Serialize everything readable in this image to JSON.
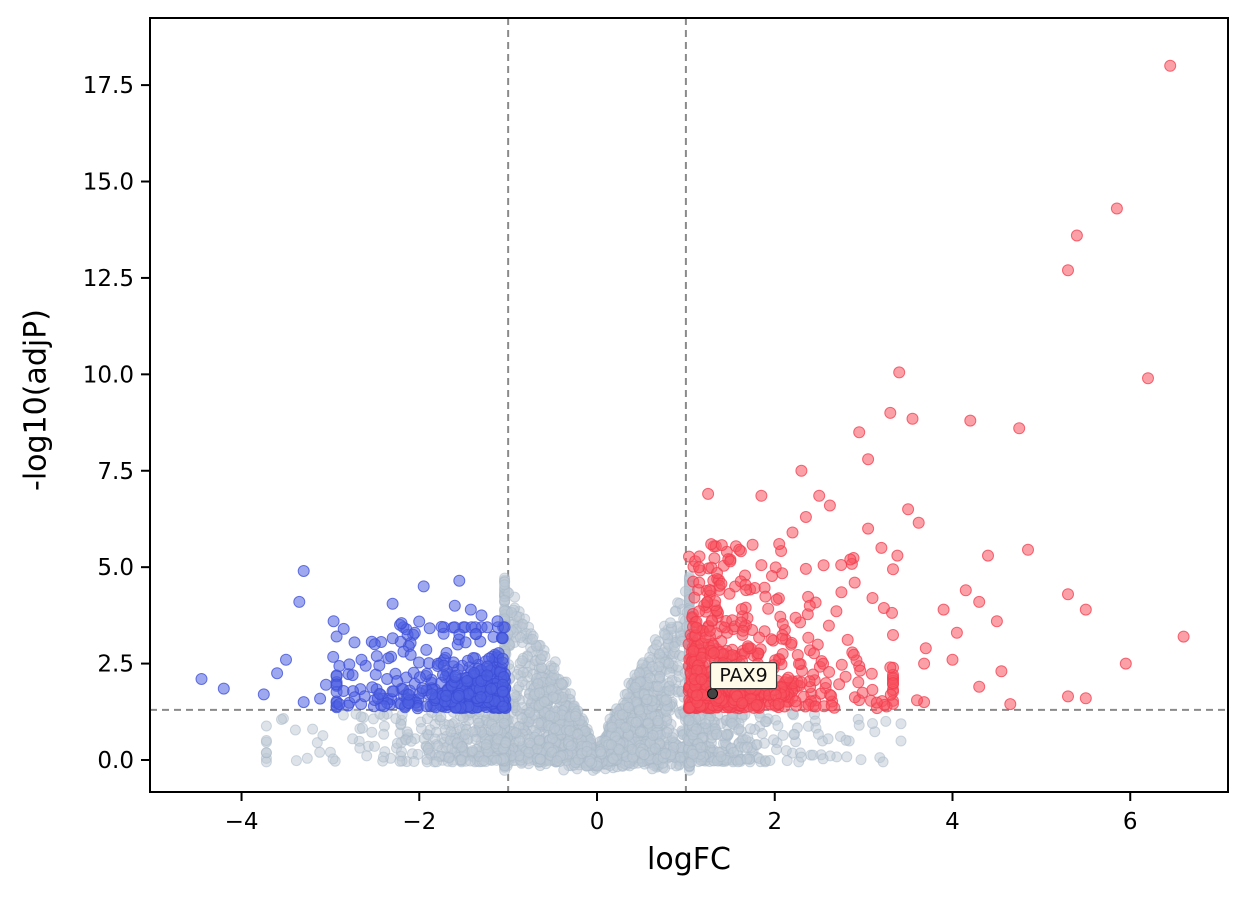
{
  "chart_data": {
    "type": "scatter",
    "variant": "volcano-plot",
    "title": "",
    "xlabel": "logFC",
    "ylabel": "-log10(adjP)",
    "xlim": [
      -5.03,
      7.1
    ],
    "ylim": [
      -0.83,
      19.24
    ],
    "grid": false,
    "legend": null,
    "xticks": {
      "values": [
        -4,
        -2,
        0,
        2,
        4,
        6
      ],
      "labels": [
        "−4",
        "−2",
        "0",
        "2",
        "4",
        "6"
      ]
    },
    "yticks": {
      "values": [
        0,
        2.5,
        5,
        7.5,
        10,
        12.5,
        15,
        17.5
      ],
      "labels": [
        "0.0",
        "2.5",
        "5.0",
        "7.5",
        "10.0",
        "12.5",
        "15.0",
        "17.5"
      ]
    },
    "threshold_lines": {
      "vertical_x": [
        -1,
        1
      ],
      "horizontal_y": 1.301,
      "color": "#8a8a8a",
      "style": "dashed"
    },
    "annotation": {
      "label": "PAX9",
      "point": [
        1.3,
        1.72
      ],
      "box_color": "#fffbe8",
      "border_color": "#3a3a3a"
    },
    "colors": {
      "not_significant": "#bcc8d4",
      "down": "#4f61e2",
      "up": "#f8525f",
      "axes": "#000000"
    },
    "series": [
      {
        "name": "not_significant_core",
        "kind": "volcano",
        "n": 2300,
        "sigma": 0.75,
        "xclip": 1.04,
        "ymax": 4.6,
        "xpow": 0.85,
        "ypow": 1.6,
        "noise": 0.12,
        "floor": -0.28,
        "fill": "#bcc8d4",
        "fill_opacity": 0.5,
        "stroke": "#a9b8c6",
        "stroke_opacity": 0.55,
        "radius": 5
      },
      {
        "name": "not_significant_right_wing",
        "kind": "cloud",
        "n": 260,
        "x": {
          "type": "exp",
          "offset": 1.02,
          "sign": 1,
          "mean": 0.55,
          "span": 2.4
        },
        "y": {
          "type": "uniform",
          "min": -0.05,
          "max": 1.25,
          "pow": 1.5
        },
        "fill": "#bcc8d4",
        "fill_opacity": 0.5,
        "stroke": "#a9b8c6",
        "stroke_opacity": 0.55,
        "radius": 5
      },
      {
        "name": "not_significant_left_wing",
        "kind": "cloud",
        "n": 300,
        "x": {
          "type": "exp",
          "offset": -1.02,
          "sign": -1,
          "mean": 0.62,
          "span": 2.7
        },
        "y": {
          "type": "uniform",
          "min": -0.05,
          "max": 1.25,
          "pow": 1.5
        },
        "fill": "#bcc8d4",
        "fill_opacity": 0.5,
        "stroke": "#a9b8c6",
        "stroke_opacity": 0.55,
        "radius": 5
      },
      {
        "name": "not_significant_extras",
        "kind": "points",
        "points": [
          [
            -3.55,
            1.05
          ],
          [
            -3.2,
            0.8
          ],
          [
            -2.75,
            0.55
          ],
          [
            -2.4,
            1.15
          ],
          [
            2.95,
            0.9
          ],
          [
            3.25,
            1.0
          ],
          [
            2.6,
            0.55
          ],
          [
            2.2,
            1.2
          ],
          [
            -1.9,
            0.3
          ],
          [
            1.8,
            0.4
          ]
        ],
        "fill": "#bcc8d4",
        "fill_opacity": 0.5,
        "stroke": "#a9b8c6",
        "stroke_opacity": 0.55,
        "radius": 5
      },
      {
        "name": "down_cluster",
        "kind": "cloud",
        "n": 400,
        "x": {
          "type": "exp",
          "offset": -1.03,
          "sign": -1,
          "mean": 0.5,
          "span": 1.9
        },
        "y": {
          "type": "exp",
          "offset": 1.34,
          "sign": 1,
          "mean": 0.55,
          "span": 2.1
        },
        "fill": "#4f61e2",
        "fill_opacity": 0.55,
        "stroke": "#3c4ed6",
        "stroke_opacity": 0.75,
        "radius": 5.5
      },
      {
        "name": "down_spread",
        "kind": "cloud",
        "n": 70,
        "x": {
          "type": "normal",
          "mu": -1.9,
          "sigma": 0.55,
          "clip": [
            -3.3,
            -1.06
          ]
        },
        "y": {
          "type": "uniform",
          "min": 1.35,
          "max": 3.6,
          "pow": 1
        },
        "fill": "#4f61e2",
        "fill_opacity": 0.55,
        "stroke": "#3c4ed6",
        "stroke_opacity": 0.75,
        "radius": 5.5
      },
      {
        "name": "down_outliers",
        "kind": "points",
        "points": [
          [
            -3.3,
            4.9
          ],
          [
            -1.55,
            4.65
          ],
          [
            -1.95,
            4.5
          ],
          [
            -3.35,
            4.1
          ],
          [
            -2.3,
            4.05
          ],
          [
            -1.6,
            4.0
          ],
          [
            -1.42,
            3.9
          ],
          [
            -2.85,
            3.4
          ],
          [
            -2.2,
            3.55
          ],
          [
            -1.12,
            3.6
          ],
          [
            -1.75,
            3.45
          ],
          [
            -2.05,
            3.3
          ],
          [
            -3.5,
            2.6
          ],
          [
            -3.6,
            2.25
          ],
          [
            -4.45,
            2.1
          ],
          [
            -4.2,
            1.85
          ],
          [
            -3.75,
            1.7
          ],
          [
            -3.3,
            1.5
          ],
          [
            -2.9,
            1.45
          ],
          [
            -2.65,
            2.6
          ],
          [
            -2.5,
            3.0
          ],
          [
            -2.75,
            2.2
          ],
          [
            -3.05,
            1.95
          ],
          [
            -2.45,
            2.45
          ],
          [
            -1.3,
            3.75
          ]
        ],
        "fill": "#4f61e2",
        "fill_opacity": 0.55,
        "stroke": "#3c4ed6",
        "stroke_opacity": 0.75,
        "radius": 5.5
      },
      {
        "name": "up_cluster",
        "kind": "cloud",
        "n": 620,
        "x": {
          "type": "exp",
          "offset": 1.03,
          "sign": 1,
          "mean": 0.55,
          "span": 2.3
        },
        "y": {
          "type": "exp",
          "offset": 1.34,
          "sign": 1,
          "mean": 0.8,
          "span": 4.2
        },
        "fill": "#f8525f",
        "fill_opacity": 0.55,
        "stroke": "#f23c4e",
        "stroke_opacity": 0.75,
        "radius": 5.5
      },
      {
        "name": "up_spread",
        "kind": "cloud",
        "n": 110,
        "x": {
          "type": "exp",
          "offset": 1.08,
          "sign": 1,
          "mean": 0.85,
          "span": 2.6
        },
        "y": {
          "type": "uniform",
          "min": 1.4,
          "max": 5.6,
          "pow": 1
        },
        "fill": "#f8525f",
        "fill_opacity": 0.55,
        "stroke": "#f23c4e",
        "stroke_opacity": 0.75,
        "radius": 5.5
      },
      {
        "name": "up_outliers",
        "kind": "points",
        "points": [
          [
            6.45,
            18.0
          ],
          [
            5.85,
            14.3
          ],
          [
            5.4,
            13.6
          ],
          [
            5.3,
            12.7
          ],
          [
            6.2,
            9.9
          ],
          [
            3.4,
            10.05
          ],
          [
            3.3,
            9.0
          ],
          [
            3.55,
            8.85
          ],
          [
            4.2,
            8.8
          ],
          [
            4.75,
            8.6
          ],
          [
            2.95,
            8.5
          ],
          [
            3.05,
            7.8
          ],
          [
            2.3,
            7.5
          ],
          [
            1.25,
            6.9
          ],
          [
            1.85,
            6.85
          ],
          [
            2.5,
            6.85
          ],
          [
            2.62,
            6.6
          ],
          [
            3.5,
            6.5
          ],
          [
            3.62,
            6.15
          ],
          [
            2.35,
            6.3
          ],
          [
            3.05,
            6.0
          ],
          [
            2.2,
            5.9
          ],
          [
            2.05,
            5.6
          ],
          [
            3.2,
            5.5
          ],
          [
            3.38,
            5.3
          ],
          [
            2.85,
            5.2
          ],
          [
            4.85,
            5.45
          ],
          [
            4.4,
            5.3
          ],
          [
            1.6,
            5.45
          ],
          [
            1.5,
            5.15
          ],
          [
            1.35,
            4.85
          ],
          [
            1.15,
            4.6
          ],
          [
            2.55,
            5.05
          ],
          [
            2.9,
            4.6
          ],
          [
            2.75,
            4.35
          ],
          [
            3.1,
            4.2
          ],
          [
            4.15,
            4.4
          ],
          [
            4.3,
            4.1
          ],
          [
            3.9,
            3.9
          ],
          [
            4.5,
            3.6
          ],
          [
            5.3,
            4.3
          ],
          [
            5.5,
            3.9
          ],
          [
            6.6,
            3.2
          ],
          [
            5.95,
            2.5
          ],
          [
            5.3,
            1.65
          ],
          [
            5.5,
            1.6
          ],
          [
            4.65,
            1.45
          ],
          [
            4.3,
            1.9
          ],
          [
            3.6,
            1.55
          ],
          [
            3.3,
            2.4
          ],
          [
            3.7,
            2.9
          ],
          [
            4.05,
            3.3
          ],
          [
            4.0,
            2.6
          ],
          [
            4.55,
            2.3
          ]
        ],
        "fill": "#f8525f",
        "fill_opacity": 0.55,
        "stroke": "#f23c4e",
        "stroke_opacity": 0.75,
        "radius": 5.5
      }
    ]
  }
}
